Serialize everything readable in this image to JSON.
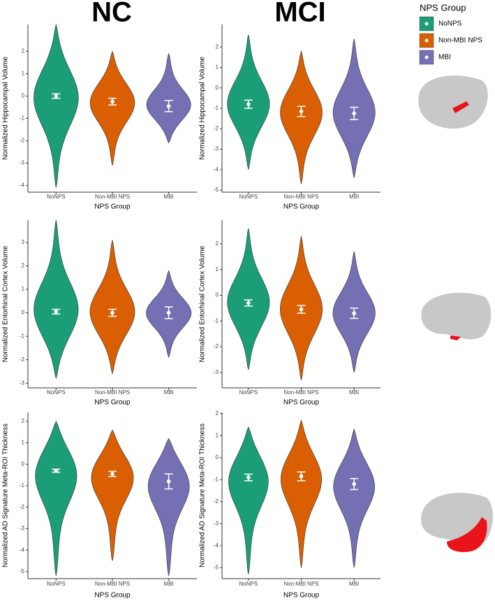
{
  "columns": [
    "NC",
    "MCI"
  ],
  "legend_title": "NPS Group",
  "chart_data": [
    {
      "type": "violin",
      "y_label": "Normalized Hippocampal Volume",
      "x_label": "NPS Group",
      "categories": [
        "NoNPS",
        "Non-MBI NPS",
        "MBI"
      ],
      "colors": [
        "#1b9e77",
        "#d95f02",
        "#7570b3"
      ],
      "means": [
        0.0,
        -0.25,
        -0.45
      ],
      "errors": [
        0.1,
        0.15,
        0.25
      ],
      "mins": [
        -4.1,
        -3.1,
        -2.1
      ],
      "maxs": [
        3.2,
        2.0,
        1.9
      ],
      "ylim": [
        -4.3,
        3.2
      ],
      "yticks": [
        -4,
        -3,
        -2,
        -1,
        0,
        1,
        2
      ]
    },
    {
      "type": "violin",
      "y_label": "Normalized Hippocampal Volume",
      "x_label": "NPS Group",
      "categories": [
        "NoNPS",
        "Non-MBI NPS",
        "MBI"
      ],
      "colors": [
        "#1b9e77",
        "#d95f02",
        "#7570b3"
      ],
      "means": [
        -0.8,
        -1.15,
        -1.25
      ],
      "errors": [
        0.2,
        0.25,
        0.3
      ],
      "mins": [
        -4.0,
        -4.7,
        -4.4
      ],
      "maxs": [
        2.6,
        1.8,
        2.4
      ],
      "ylim": [
        -5.1,
        3.1
      ],
      "yticks": [
        -5,
        -4,
        -3,
        -2,
        -1,
        0,
        1,
        2
      ]
    },
    {
      "type": "violin",
      "y_label": "Normalized Entorhinal Cortex Volume",
      "x_label": "NPS Group",
      "categories": [
        "NoNPS",
        "Non-MBI NPS",
        "MBI"
      ],
      "colors": [
        "#1b9e77",
        "#d95f02",
        "#7570b3"
      ],
      "means": [
        0.05,
        0.0,
        0.0
      ],
      "errors": [
        0.1,
        0.15,
        0.25
      ],
      "mins": [
        -2.8,
        -2.6,
        -1.9
      ],
      "maxs": [
        3.95,
        3.1,
        1.8
      ],
      "ylim": [
        -3.2,
        3.95
      ],
      "yticks": [
        -3,
        -2,
        -1,
        0,
        1,
        2,
        3
      ]
    },
    {
      "type": "violin",
      "y_label": "Normalized Entorhinal Cortex Volume",
      "x_label": "NPS Group",
      "categories": [
        "NoNPS",
        "Non-MBI NPS",
        "MBI"
      ],
      "colors": [
        "#1b9e77",
        "#d95f02",
        "#7570b3"
      ],
      "means": [
        -0.3,
        -0.55,
        -0.7
      ],
      "errors": [
        0.12,
        0.15,
        0.2
      ],
      "mins": [
        -2.9,
        -3.3,
        -3.0
      ],
      "maxs": [
        2.6,
        2.3,
        1.7
      ],
      "ylim": [
        -3.6,
        2.92
      ],
      "yticks": [
        -3,
        -2,
        -1,
        0,
        1,
        2
      ]
    },
    {
      "type": "violin",
      "y_label": "Normalized AD Signature Meta-ROI Thickness",
      "x_label": "NPS Group",
      "categories": [
        "NoNPS",
        "Non-MBI NPS",
        "MBI"
      ],
      "colors": [
        "#1b9e77",
        "#d95f02",
        "#7570b3"
      ],
      "means": [
        -0.3,
        -0.45,
        -0.8
      ],
      "errors": [
        0.07,
        0.12,
        0.35
      ],
      "mins": [
        -5.2,
        -4.5,
        -5.2
      ],
      "maxs": [
        2.0,
        1.6,
        1.2
      ],
      "ylim": [
        -5.33,
        2.42
      ],
      "yticks": [
        -5,
        -4,
        -3,
        -2,
        -1,
        0,
        1,
        2
      ]
    },
    {
      "type": "violin",
      "y_label": "Normalized AD Signature Meta-ROI Thickness",
      "x_label": "NPS Group",
      "categories": [
        "NoNPS",
        "Non-MBI NPS",
        "MBI"
      ],
      "colors": [
        "#1b9e77",
        "#d95f02",
        "#7570b3"
      ],
      "means": [
        -0.9,
        -0.85,
        -1.2
      ],
      "errors": [
        0.15,
        0.2,
        0.25
      ],
      "mins": [
        -5.3,
        -5.0,
        -5.0
      ],
      "maxs": [
        1.4,
        1.7,
        1.3
      ],
      "ylim": [
        -5.5,
        2.06
      ],
      "yticks": [
        -5,
        -4,
        -3,
        -2,
        -1,
        0,
        1,
        2
      ]
    }
  ]
}
